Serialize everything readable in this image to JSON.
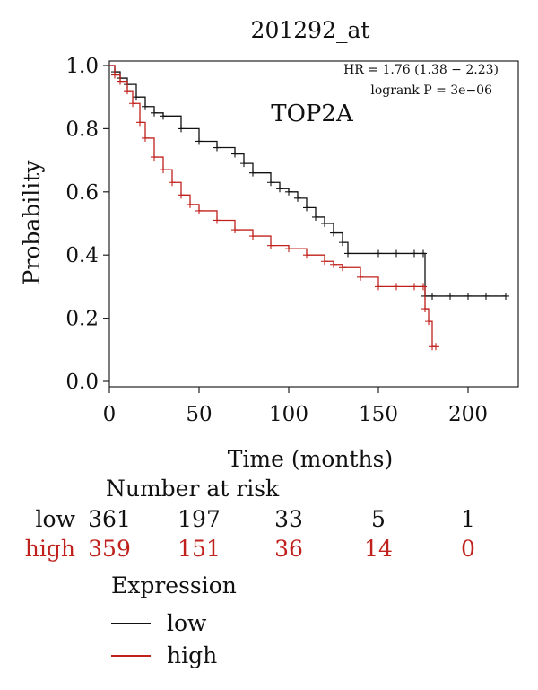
{
  "chart_data": {
    "type": "line",
    "title": "201292_at",
    "subtitle": "TOP2A",
    "xlabel": "Time (months)",
    "ylabel": "Probability",
    "xlim": [
      0,
      230
    ],
    "ylim": [
      0,
      1.0
    ],
    "xticks": [
      "0",
      "50",
      "100",
      "150",
      "200"
    ],
    "yticks": [
      "0.0",
      "0.2",
      "0.4",
      "0.6",
      "0.8",
      "1.0"
    ],
    "stats_text": {
      "hr": "HR = 1.76 (1.38 − 2.23)",
      "logrank": "logrank P = 3e−06"
    },
    "colors": {
      "low": "#111111",
      "high": "#c0211d"
    },
    "series": [
      {
        "name": "low",
        "x": [
          0,
          3,
          6,
          10,
          15,
          20,
          25,
          30,
          40,
          50,
          60,
          70,
          75,
          80,
          90,
          95,
          100,
          105,
          110,
          115,
          120,
          125,
          130,
          133,
          150,
          160,
          170,
          175,
          176,
          180,
          190,
          200,
          210,
          221
        ],
        "y": [
          1.0,
          0.98,
          0.96,
          0.94,
          0.9,
          0.87,
          0.85,
          0.84,
          0.8,
          0.76,
          0.74,
          0.72,
          0.69,
          0.66,
          0.63,
          0.61,
          0.6,
          0.58,
          0.55,
          0.52,
          0.5,
          0.47,
          0.44,
          0.405,
          0.405,
          0.405,
          0.405,
          0.405,
          0.27,
          0.27,
          0.27,
          0.27,
          0.27,
          0.27
        ]
      },
      {
        "name": "high",
        "x": [
          0,
          3,
          6,
          10,
          13,
          17,
          20,
          25,
          30,
          35,
          40,
          45,
          50,
          60,
          70,
          80,
          90,
          100,
          110,
          120,
          125,
          130,
          140,
          150,
          160,
          170,
          175,
          176,
          178,
          180,
          182
        ],
        "y": [
          1.0,
          0.97,
          0.95,
          0.92,
          0.88,
          0.82,
          0.77,
          0.71,
          0.67,
          0.63,
          0.59,
          0.56,
          0.54,
          0.51,
          0.48,
          0.46,
          0.43,
          0.42,
          0.4,
          0.38,
          0.37,
          0.36,
          0.33,
          0.3,
          0.3,
          0.3,
          0.3,
          0.23,
          0.19,
          0.11,
          0.11
        ]
      }
    ]
  },
  "risk_table": {
    "title": "Number at risk",
    "times": [
      0,
      50,
      100,
      150,
      200
    ],
    "rows": [
      {
        "label": "low",
        "values": [
          "361",
          "197",
          "33",
          "5",
          "1"
        ]
      },
      {
        "label": "high",
        "values": [
          "359",
          "151",
          "36",
          "14",
          "0"
        ]
      }
    ]
  },
  "legend": {
    "title": "Expression",
    "items": [
      {
        "label": "low"
      },
      {
        "label": "high"
      }
    ]
  }
}
